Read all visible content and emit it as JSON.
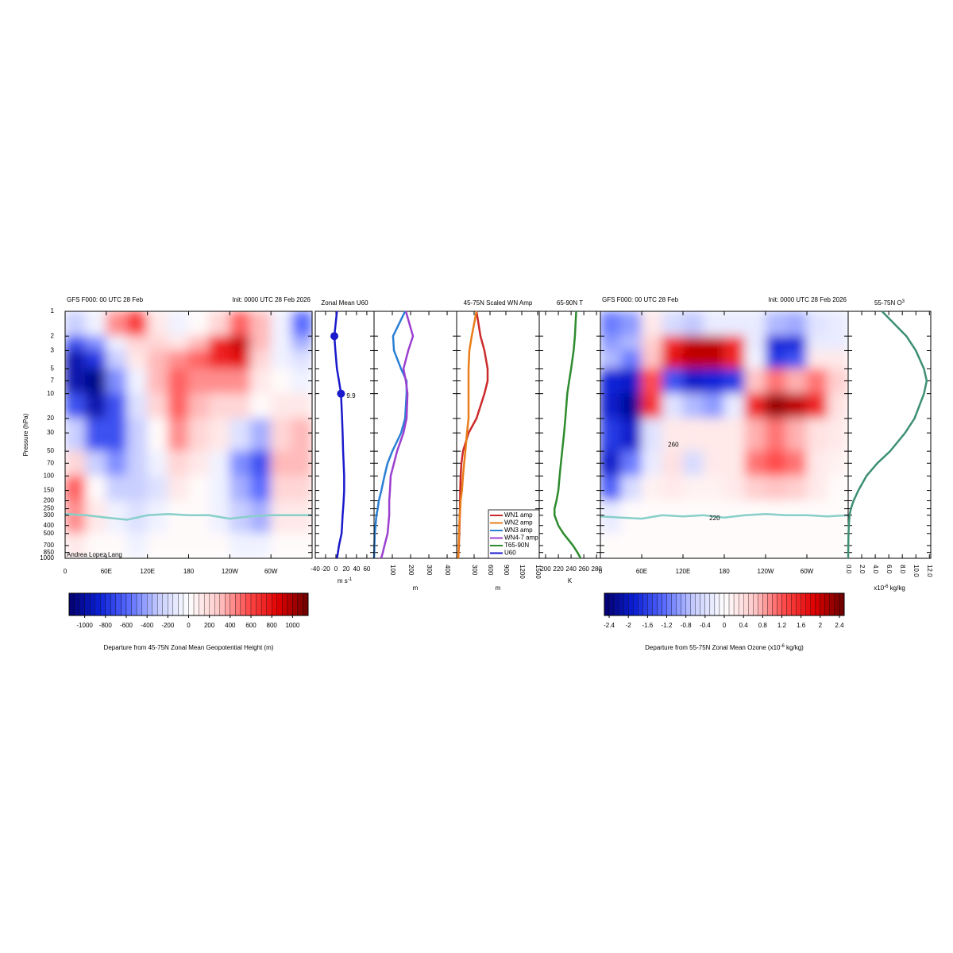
{
  "chart_data": [
    {
      "type": "heatmap",
      "title": "GFS F000: 00 UTC 28 Feb",
      "subtitle": "Init: 0000 UTC 28 Feb 2026",
      "ylabel": "Pressure (hPa)",
      "credit": "Andrea Lopez Lang",
      "xlim": [
        0,
        360
      ],
      "xticks": [
        0,
        {
          "value": 60,
          "label": "60E"
        },
        {
          "value": 120,
          "label": "120E"
        },
        180,
        {
          "value": 240,
          "label": "120W"
        },
        {
          "value": 300,
          "label": "60W"
        }
      ],
      "ylim": [
        1000,
        1
      ],
      "ylog": true,
      "yticks": [
        1,
        2,
        3,
        5,
        7,
        10,
        20,
        30,
        50,
        70,
        100,
        150,
        200,
        250,
        300,
        400,
        500,
        700,
        850,
        1000
      ],
      "x_edges": [
        0,
        30,
        60,
        90,
        120,
        150,
        180,
        210,
        240,
        270,
        300,
        330,
        360
      ],
      "y_edges": [
        1,
        2,
        3,
        5,
        10,
        20,
        50,
        100,
        200,
        500,
        1000
      ],
      "values": [
        [
          -300,
          -100,
          400,
          600,
          100,
          -100,
          0,
          200,
          500,
          300,
          -100,
          -600
        ],
        [
          -700,
          -500,
          -100,
          200,
          200,
          100,
          300,
          700,
          900,
          300,
          -100,
          -400
        ],
        [
          -1000,
          -800,
          -300,
          100,
          300,
          400,
          500,
          700,
          800,
          200,
          -100,
          -200
        ],
        [
          -1000,
          -1100,
          -500,
          -100,
          300,
          500,
          400,
          400,
          400,
          100,
          0,
          -100
        ],
        [
          -700,
          -1000,
          -700,
          -200,
          200,
          500,
          300,
          200,
          200,
          0,
          100,
          100
        ],
        [
          -300,
          -700,
          -700,
          -300,
          0,
          400,
          200,
          100,
          -200,
          -400,
          200,
          300
        ],
        [
          200,
          -300,
          -500,
          -300,
          -100,
          200,
          100,
          -100,
          -500,
          -700,
          300,
          300
        ],
        [
          500,
          0,
          -300,
          -300,
          -200,
          100,
          0,
          -100,
          -400,
          -600,
          200,
          200
        ],
        [
          400,
          100,
          -100,
          -200,
          -100,
          0,
          0,
          -100,
          -300,
          -400,
          100,
          100
        ],
        [
          100,
          0,
          0,
          -100,
          0,
          0,
          0,
          0,
          -100,
          -100,
          0,
          0
        ]
      ],
      "colormap": [
        "#03006e",
        "#0a1fd6",
        "#5a6cff",
        "#c7cdff",
        "#ffffff",
        "#ffc9c9",
        "#ff4b4b",
        "#e00000",
        "#6b0000"
      ],
      "colorbar": {
        "clim": [
          -1150,
          1150
        ],
        "step": 50,
        "ticks": [
          -1000,
          -800,
          -600,
          -400,
          -200,
          0,
          200,
          400,
          600,
          800,
          1000
        ],
        "label": "Departure from 45-75N Zonal Mean Geopotential Height (m)"
      },
      "tropopause": {
        "color": "#88cfc9",
        "x": [
          0,
          30,
          60,
          90,
          120,
          150,
          180,
          210,
          240,
          270,
          300,
          330,
          360
        ],
        "values": [
          290,
          300,
          320,
          340,
          300,
          290,
          300,
          300,
          330,
          310,
          300,
          300,
          300
        ]
      }
    },
    {
      "type": "profile",
      "title": "45-75N Scaled WN Amp",
      "xlabel": "m",
      "xlim": [
        -30,
        1530
      ],
      "xticks": [
        300,
        600,
        900,
        1200,
        1500
      ],
      "pressure": [
        1,
        2,
        3,
        5,
        7,
        10,
        20,
        30,
        50,
        70,
        100,
        150,
        200,
        250,
        300,
        400,
        500,
        700,
        850,
        1000
      ],
      "legend": "lower right",
      "series": [
        {
          "name": "WN1 amp",
          "color": "#cc2a2a",
          "values": [
            345,
            420,
            495,
            555,
            555,
            495,
            345,
            195,
            90,
            60,
            45,
            38,
            35,
            33,
            30,
            25,
            20,
            12,
            6,
            0
          ]
        },
        {
          "name": "WN2 amp",
          "color": "#e87d1a",
          "values": [
            345,
            255,
            210,
            195,
            195,
            195,
            195,
            165,
            135,
            112,
            90,
            70,
            45,
            38,
            30,
            20,
            15,
            8,
            4,
            0
          ]
        }
      ]
    },
    {
      "type": "profile",
      "xlabel": "m",
      "xlim": [
        0,
        452
      ],
      "xticks": [
        100,
        200,
        300,
        400
      ],
      "pressure": [
        1,
        2,
        3,
        5,
        7,
        10,
        20,
        30,
        50,
        70,
        100,
        150,
        200,
        250,
        300,
        400,
        500,
        700,
        850,
        1000
      ],
      "series": [
        {
          "name": "WN3 amp",
          "color": "#2a7fd4",
          "values": [
            170,
            104,
            109,
            148,
            178,
            178,
            170,
            148,
            100,
            74,
            57,
            40,
            26,
            20,
            13,
            8,
            4,
            2,
            1,
            0
          ]
        },
        {
          "name": "WN4-7 amp",
          "color": "#9b3fd0",
          "values": [
            174,
            213,
            187,
            161,
            174,
            183,
            178,
            161,
            126,
            109,
            91,
            87,
            83,
            83,
            83,
            78,
            74,
            57,
            48,
            39
          ]
        }
      ]
    },
    {
      "type": "profile",
      "title": "65-90N T",
      "xlabel": "K",
      "xlim": [
        190,
        286
      ],
      "xticks": [
        200,
        220,
        240,
        260,
        280
      ],
      "pressure": [
        1,
        2,
        3,
        5,
        7,
        10,
        20,
        30,
        50,
        70,
        100,
        150,
        200,
        250,
        300,
        400,
        500,
        700,
        850,
        1000
      ],
      "series": [
        {
          "name": "T65-90N",
          "color": "#2e8b2e",
          "values": [
            248,
            246,
            244,
            240,
            237,
            234,
            231,
            229,
            226,
            224,
            222,
            220,
            217,
            214,
            214,
            220,
            228,
            243,
            250,
            255
          ]
        }
      ]
    },
    {
      "type": "profile",
      "title": "Zonal Mean U60",
      "xlabel": [
        "m s",
        "-1"
      ],
      "xlim": [
        -40,
        74
      ],
      "xticks": [
        -40,
        -20,
        0,
        20,
        40,
        60
      ],
      "pressure": [
        1,
        2,
        3,
        5,
        7,
        10,
        20,
        30,
        50,
        70,
        100,
        150,
        200,
        250,
        300,
        400,
        500,
        700,
        850,
        1000
      ],
      "series": [
        {
          "name": "U60",
          "color": "#1a1acc",
          "values": [
            2,
            -3,
            -1,
            2,
            6,
            9.9,
            12,
            13,
            14,
            15,
            16,
            16,
            15,
            14,
            13,
            12,
            11,
            6,
            4,
            2
          ]
        }
      ],
      "points": [
        {
          "pressure": 2,
          "value": -3
        },
        {
          "pressure": 10,
          "value": 9.9,
          "label": "9.9"
        }
      ]
    },
    {
      "type": "heatmap",
      "title": "GFS F000: 00 UTC 28 Feb",
      "subtitle": "Init: 0000 UTC 28 Feb 2026",
      "xlim": [
        0,
        360
      ],
      "xticks": [
        0,
        {
          "value": 60,
          "label": "60E"
        },
        {
          "value": 120,
          "label": "120E"
        },
        180,
        {
          "value": 240,
          "label": "120W"
        },
        {
          "value": 300,
          "label": "60W"
        }
      ],
      "x_edges": [
        0,
        30,
        60,
        90,
        120,
        150,
        180,
        210,
        240,
        270,
        300,
        330,
        360
      ],
      "y_edges": [
        1,
        2,
        3,
        5,
        10,
        20,
        50,
        100,
        200,
        500,
        1000
      ],
      "values": [
        [
          -1.2,
          -1.0,
          0.3,
          -0.5,
          -0.6,
          -0.3,
          -0.2,
          -0.3,
          -0.8,
          -0.9,
          -0.4,
          -0.3
        ],
        [
          -1.0,
          -0.8,
          0.5,
          1.6,
          2.0,
          2.0,
          1.5,
          -0.2,
          -1.8,
          -1.8,
          -0.3,
          -0.2
        ],
        [
          -0.8,
          -1.2,
          0.6,
          1.8,
          2.1,
          2.0,
          1.6,
          -0.1,
          -1.6,
          -1.5,
          0.3,
          0.2
        ],
        [
          -1.8,
          -2.0,
          1.2,
          -1.5,
          -2.0,
          -1.8,
          -1.6,
          0.6,
          1.0,
          0.8,
          1.0,
          0.5
        ],
        [
          -2.0,
          -2.2,
          1.4,
          -0.4,
          -0.8,
          -1.0,
          -0.3,
          1.6,
          2.2,
          2.0,
          1.6,
          0.4
        ],
        [
          -1.6,
          -2.0,
          -0.4,
          0.2,
          0.3,
          0.2,
          0.3,
          0.8,
          1.0,
          0.8,
          0.4,
          0.2
        ],
        [
          -2.0,
          -1.2,
          -0.3,
          0.4,
          -0.5,
          0.2,
          0.3,
          1.0,
          1.2,
          1.0,
          0.3,
          0.1
        ],
        [
          -1.4,
          -0.5,
          0.1,
          0.2,
          0.1,
          0.1,
          0.2,
          0.5,
          0.6,
          0.5,
          0.2,
          0.0
        ],
        [
          -0.2,
          0,
          0,
          0,
          0,
          0,
          0,
          0,
          0,
          0,
          0,
          0
        ],
        [
          0,
          0,
          0,
          0,
          0,
          0,
          0,
          0,
          0,
          0,
          0,
          0
        ]
      ],
      "colormap": [
        "#03006e",
        "#0a1fd6",
        "#5a6cff",
        "#c7cdff",
        "#ffffff",
        "#ffc9c9",
        "#ff4b4b",
        "#e00000",
        "#6b0000"
      ],
      "colorbar": {
        "clim": [
          -2.5,
          2.5
        ],
        "step": 0.1,
        "ticks": [
          -2.4,
          -2,
          -1.6,
          -1.2,
          -0.8,
          -0.4,
          0,
          0.4,
          0.8,
          1.2,
          1.6,
          2,
          2.4
        ],
        "label": [
          "Departure from 55-75N Zonal Mean Ozone (x10",
          "-6",
          " kg/kg)"
        ]
      },
      "tropopause": {
        "color": "#88cfc9",
        "x": [
          0,
          30,
          60,
          90,
          120,
          150,
          180,
          210,
          240,
          270,
          300,
          330,
          360
        ],
        "values": [
          310,
          320,
          330,
          300,
          310,
          300,
          320,
          300,
          290,
          300,
          300,
          310,
          300
        ]
      },
      "contour_labels": [
        {
          "text": "260",
          "x": 106,
          "y": 42
        },
        {
          "text": "220",
          "x": 166,
          "y": 330
        }
      ]
    },
    {
      "type": "profile",
      "title": [
        "55-75N O",
        "3"
      ],
      "xlabel": [
        "x10",
        "-6",
        " kg/kg"
      ],
      "xlim": [
        0,
        12.2
      ],
      "xticks": [
        {
          "value": 0,
          "label": "0.0"
        },
        {
          "value": 2,
          "label": "2.0"
        },
        {
          "value": 4,
          "label": "4.0"
        },
        {
          "value": 6,
          "label": "6.0"
        },
        {
          "value": 8,
          "label": "8.0"
        },
        {
          "value": 10,
          "label": "10.0"
        },
        {
          "value": 12,
          "label": "12.0"
        }
      ],
      "pressure": [
        1,
        2,
        3,
        5,
        7,
        10,
        20,
        30,
        50,
        70,
        100,
        150,
        200,
        250,
        300,
        400,
        500,
        700,
        850,
        1000
      ],
      "series": [
        {
          "color": "#3d8f73",
          "values": [
            5,
            8.6,
            10,
            11.2,
            11.6,
            11.2,
            9.8,
            8.4,
            6.2,
            4.3,
            2.7,
            1.5,
            0.8,
            0.4,
            0.2,
            0.1,
            0.05,
            0.02,
            0.01,
            0
          ]
        }
      ]
    }
  ]
}
